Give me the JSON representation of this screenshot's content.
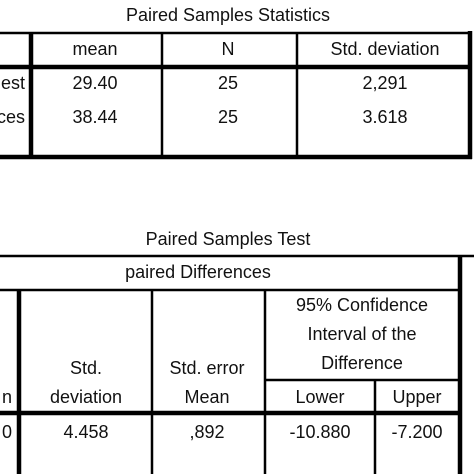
{
  "tables": [
    {
      "title": "Paired Samples Statistics",
      "header": [
        "mean",
        "N",
        "Std. deviation"
      ],
      "rows": [
        [
          "est",
          "29.40",
          "25",
          "2,291"
        ],
        [
          "ces",
          "38.44",
          "25",
          "3.618"
        ]
      ]
    },
    {
      "title": "Paired Samples Test",
      "group_header": "paired Differences",
      "ci_header": [
        "95% Confidence",
        "Interval of the",
        "Difference"
      ],
      "headers": [
        [
          "n"
        ],
        [
          "Std.",
          "deviation"
        ],
        [
          "Std. error",
          "Mean"
        ],
        [
          "Lower"
        ],
        [
          "Upper"
        ]
      ],
      "row": [
        "0",
        "4.458",
        ",892",
        "-10.880",
        "-7.200"
      ]
    }
  ]
}
